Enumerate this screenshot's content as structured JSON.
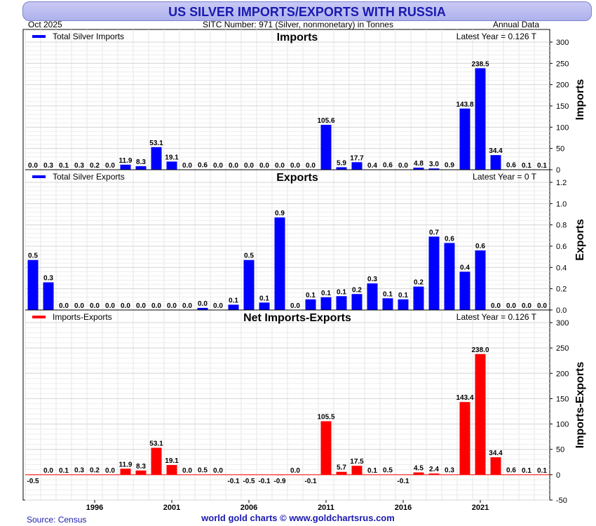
{
  "title": "US SILVER IMPORTS/EXPORTS WITH RUSSIA",
  "header_left": "Oct  2025",
  "header_center": "SITC Number: 971 (Silver, nonmonetary) in Tonnes",
  "header_right": "Annual Data",
  "footer_source": "Source: Census",
  "footer_center": "world gold charts © www.goldchartsrus.com",
  "colors": {
    "imports": "#0000ff",
    "exports": "#0000ff",
    "net": "#ff0000",
    "zero_line": "#ff0000"
  },
  "chart_data": [
    {
      "type": "bar",
      "title": "Imports",
      "legend": "Total Silver Imports",
      "latest": "Latest Year = 0.126 T",
      "ylabel": "Imports",
      "ylim": [
        0,
        300
      ],
      "yticks": [
        "0",
        "50",
        "100",
        "150",
        "200",
        "250",
        "300"
      ],
      "years": [
        1992,
        1993,
        1994,
        1995,
        1996,
        1997,
        1998,
        1999,
        2000,
        2001,
        2002,
        2003,
        2004,
        2005,
        2006,
        2007,
        2008,
        2009,
        2010,
        2011,
        2012,
        2013,
        2014,
        2015,
        2016,
        2017,
        2018,
        2019,
        2020,
        2021,
        2022,
        2023,
        2024,
        2025
      ],
      "values": [
        0.0,
        0.3,
        0.1,
        0.3,
        0.2,
        0.0,
        11.9,
        8.3,
        53.1,
        19.1,
        0.0,
        0.6,
        0.0,
        0.0,
        0.0,
        0.0,
        0.0,
        0.0,
        0.0,
        105.6,
        5.9,
        17.7,
        0.4,
        0.6,
        0.0,
        4.8,
        3.0,
        0.9,
        143.8,
        238.5,
        34.4,
        0.6,
        0.1,
        0.1
      ],
      "labels": [
        "0.0",
        "0.3",
        "0.1",
        "0.3",
        "0.2",
        "0.0",
        "11.9",
        "8.3",
        "53.1",
        "19.1",
        "0.0",
        "0.6",
        "0.0",
        "0.0",
        "0.0",
        "0.0",
        "0.0",
        "0.0",
        "0.0",
        "105.6",
        "5.9",
        "17.7",
        "0.4",
        "0.6",
        "0.0",
        "4.8",
        "3.0",
        "0.9",
        "143.8",
        "238.5",
        "34.4",
        "0.6",
        "0.1",
        "0.1"
      ]
    },
    {
      "type": "bar",
      "title": "Exports",
      "legend": "Total Silver Exports",
      "latest": "Latest Year = 0 T",
      "ylabel": "Exports",
      "ylim": [
        0,
        1.2
      ],
      "yticks": [
        "0.0",
        "0.2",
        "0.4",
        "0.6",
        "0.8",
        "1.0",
        "1.2"
      ],
      "years": [
        1992,
        1993,
        1994,
        1995,
        1996,
        1997,
        1998,
        1999,
        2000,
        2001,
        2002,
        2003,
        2004,
        2005,
        2006,
        2007,
        2008,
        2009,
        2010,
        2011,
        2012,
        2013,
        2014,
        2015,
        2016,
        2017,
        2018,
        2019,
        2020,
        2021,
        2022,
        2023,
        2024,
        2025
      ],
      "values": [
        0.47,
        0.26,
        0.0,
        0.0,
        0.0,
        0.0,
        0.0,
        0.0,
        0.0,
        0.0,
        0.0,
        0.02,
        0.0,
        0.05,
        0.47,
        0.07,
        0.87,
        0.0,
        0.1,
        0.12,
        0.13,
        0.15,
        0.25,
        0.11,
        0.1,
        0.22,
        0.69,
        0.63,
        0.36,
        0.56,
        0.0,
        0.0,
        0.0,
        0.0
      ],
      "labels": [
        "0.5",
        "0.3",
        "0.0",
        "0.0",
        "0.0",
        "0.0",
        "0.0",
        "0.0",
        "0.0",
        "0.0",
        "0.0",
        "0.0",
        "0.0",
        "0.1",
        "0.5",
        "0.1",
        "0.9",
        "0.0",
        "0.1",
        "0.1",
        "0.1",
        "0.2",
        "0.3",
        "0.1",
        "0.1",
        "0.2",
        "0.7",
        "0.6",
        "0.4",
        "0.6",
        "0.0",
        "0.0",
        "0.0",
        "0.0"
      ]
    },
    {
      "type": "bar",
      "title": "Net Imports-Exports",
      "legend": "Imports-Exports",
      "latest": "Latest Year = 0.126 T",
      "ylabel": "Imports-Exports",
      "ylim": [
        -50,
        300
      ],
      "yticks": [
        "-50",
        "0",
        "50",
        "100",
        "150",
        "200",
        "250",
        "300"
      ],
      "xticks": [
        "1996",
        "2001",
        "2006",
        "2011",
        "2016",
        "2021"
      ],
      "xtick_years": [
        1996,
        2001,
        2006,
        2011,
        2016,
        2021
      ],
      "years": [
        1992,
        1993,
        1994,
        1995,
        1996,
        1997,
        1998,
        1999,
        2000,
        2001,
        2002,
        2003,
        2004,
        2005,
        2006,
        2007,
        2008,
        2009,
        2010,
        2011,
        2012,
        2013,
        2014,
        2015,
        2016,
        2017,
        2018,
        2019,
        2020,
        2021,
        2022,
        2023,
        2024,
        2025
      ],
      "values": [
        -0.5,
        0.0,
        0.1,
        0.3,
        0.2,
        0.0,
        11.9,
        8.3,
        53.1,
        19.1,
        0.0,
        0.5,
        0.0,
        -0.1,
        -0.5,
        -0.1,
        -0.9,
        0.0,
        -0.1,
        105.5,
        5.7,
        17.5,
        0.1,
        0.5,
        -0.1,
        4.5,
        2.4,
        0.3,
        143.4,
        238.0,
        34.4,
        0.6,
        0.1,
        0.1
      ],
      "labels": [
        "-0.5",
        "0.0",
        "0.1",
        "0.3",
        "0.2",
        "0.0",
        "11.9",
        "8.3",
        "53.1",
        "19.1",
        "0.0",
        "0.5",
        "0.0",
        "-0.1",
        "-0.5",
        "-0.1",
        "-0.9",
        "0.0",
        "-0.1",
        "105.5",
        "5.7",
        "17.5",
        "0.1",
        "0.5",
        "-0.1",
        "4.5",
        "2.4",
        "0.3",
        "143.4",
        "238.0",
        "34.4",
        "0.6",
        "0.1",
        "0.1"
      ]
    }
  ]
}
